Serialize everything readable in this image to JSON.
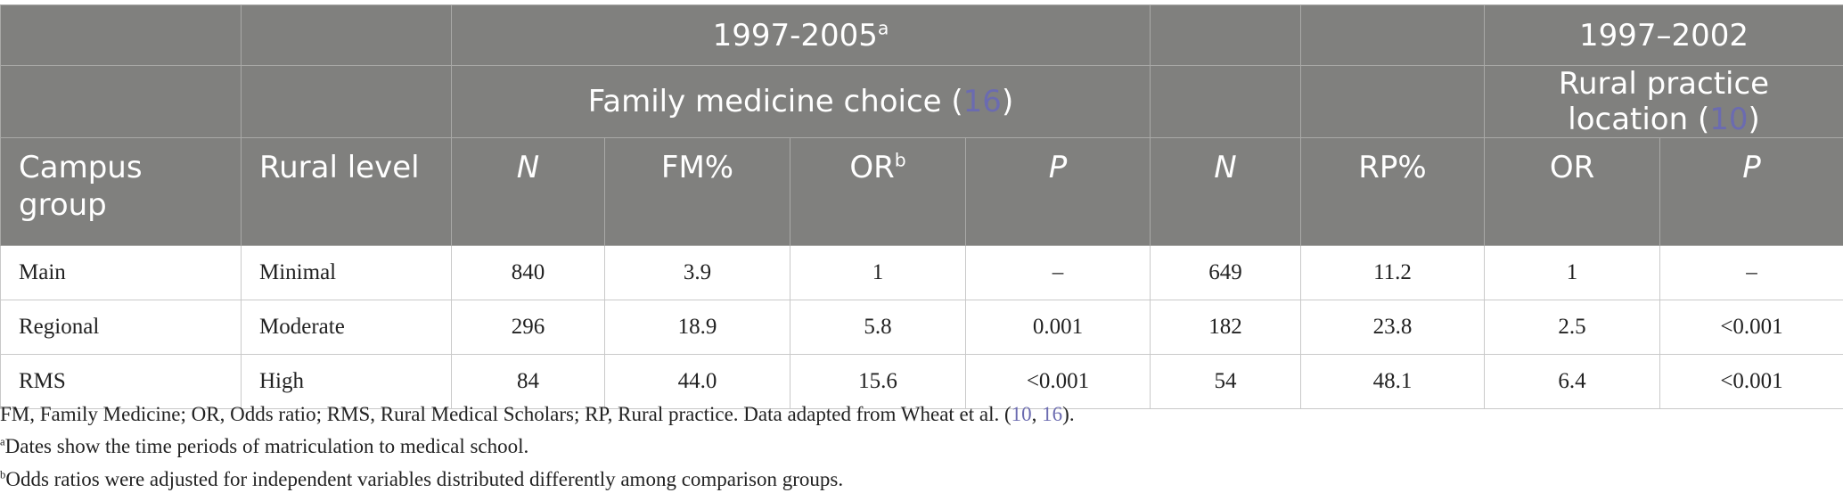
{
  "header": {
    "period_1": "1997-2005",
    "period_1_note": "a",
    "period_2": "1997–2002",
    "outcome_1": {
      "text": "Family medicine choice (",
      "ref": "16",
      "close": ")"
    },
    "outcome_2": {
      "text": "Rural practice location (",
      "ref": "10",
      "close": ")"
    },
    "columns": [
      "Campus group",
      "Rural level",
      "N",
      "FM%",
      "OR",
      "P",
      "N",
      "RP%",
      "OR",
      "P"
    ],
    "column_4_note": "b"
  },
  "table": {
    "rows": [
      [
        "Main",
        "Minimal",
        "840",
        "3.9",
        "1",
        "–",
        "649",
        "11.2",
        "1",
        "–"
      ],
      [
        "Regional",
        "Moderate",
        "296",
        "18.9",
        "5.8",
        "0.001",
        "182",
        "23.8",
        "2.5",
        "<0.001"
      ],
      [
        "RMS",
        "High",
        "84",
        "44.0",
        "15.6",
        "<0.001",
        "54",
        "48.1",
        "6.4",
        "<0.001"
      ]
    ]
  },
  "footnotes": {
    "note_0": {
      "text": "FM, Family Medicine; OR, Odds ratio; RMS, Rural Medical Scholars; RP, Rural practice. Data adapted from Wheat et al. (",
      "ref_1": "10",
      "separator": ", ",
      "ref_2": "16",
      "end": ")."
    },
    "note_a": {
      "mark": "a",
      "text": "Dates show the time periods of matriculation to medical school."
    },
    "note_b": {
      "mark": "b",
      "text": "Odds ratios were adjusted for independent variables distributed differently among comparison groups."
    }
  }
}
